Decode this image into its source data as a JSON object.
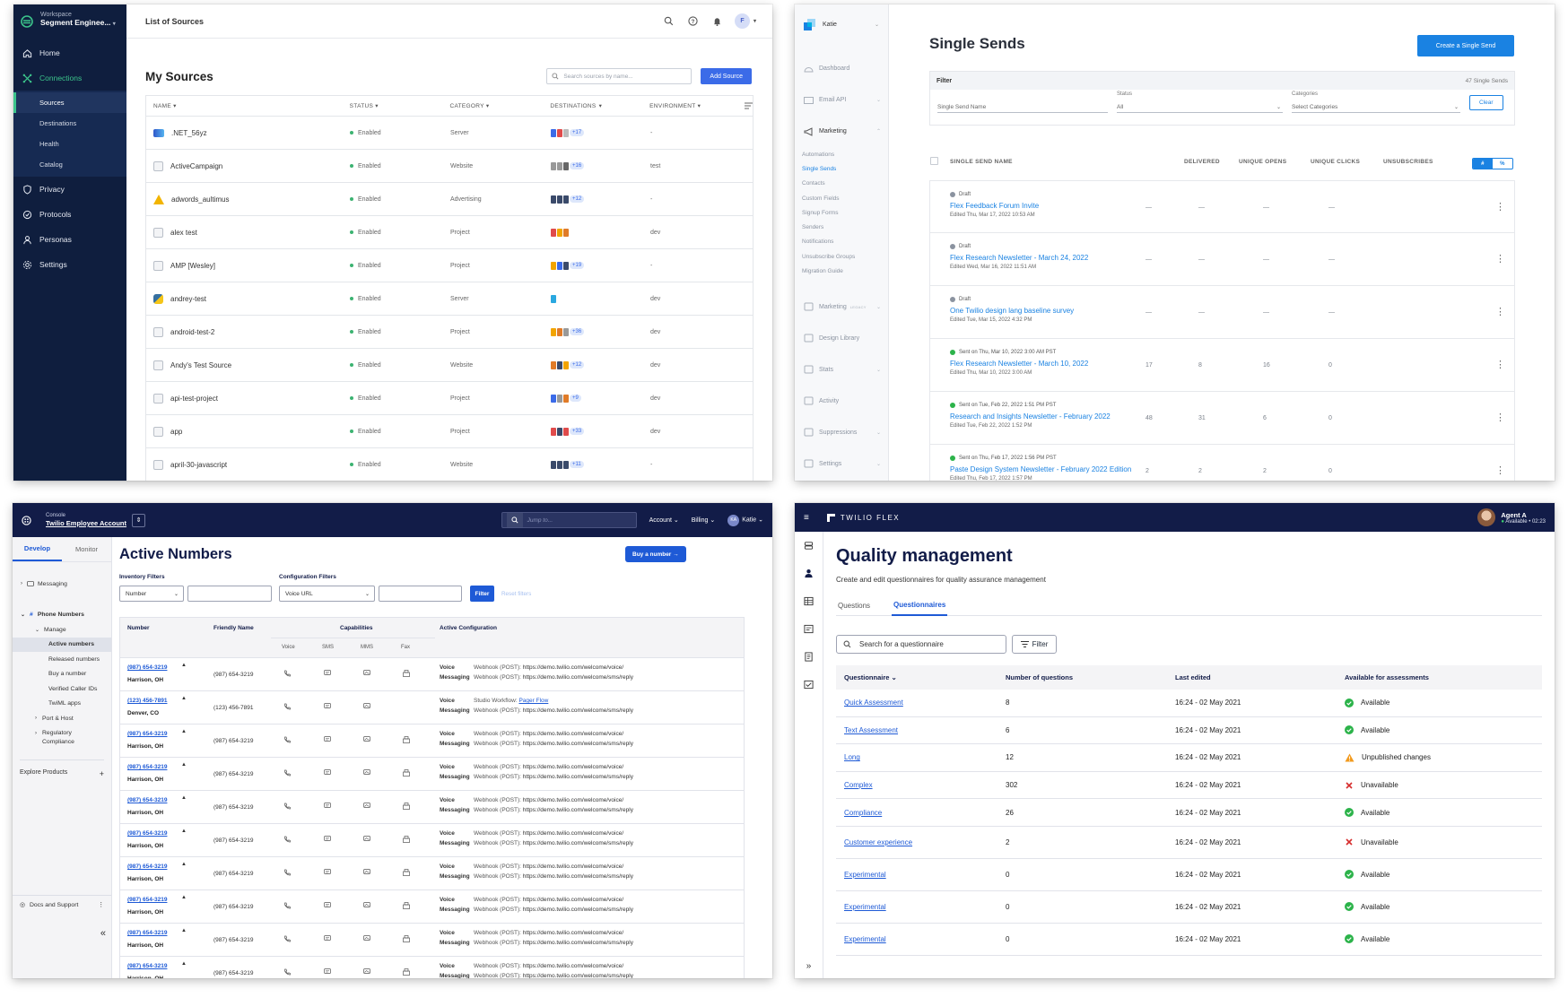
{
  "segment": {
    "workspace_label": "Workspace",
    "workspace_name": "Segment Enginee...",
    "nav": [
      {
        "label": "Home",
        "icon": "home-icon"
      },
      {
        "label": "Connections",
        "icon": "connections-icon"
      }
    ],
    "sub_nav": [
      "Sources",
      "Destinations",
      "Health",
      "Catalog"
    ],
    "nav_bottom": [
      {
        "label": "Privacy",
        "icon": "shield-icon"
      },
      {
        "label": "Protocols",
        "icon": "protocols-icon"
      },
      {
        "label": "Personas",
        "icon": "person-icon"
      },
      {
        "label": "Settings",
        "icon": "gear-icon"
      }
    ],
    "page_title": "List of Sources",
    "avatar_initial": "F",
    "heading": "My Sources",
    "search_placeholder": "Search sources by name...",
    "add_button": "Add Source",
    "columns": [
      "NAME",
      "STATUS",
      "CATEGORY",
      "DESTINATIONS",
      "ENVIRONMENT"
    ],
    "rows": [
      {
        "name": ".NET_56yz",
        "status": "Enabled",
        "category": "Server",
        "count": "+17",
        "env": "-",
        "colors": [
          "#3b6be8",
          "#e04b4b",
          "#bbb"
        ]
      },
      {
        "name": "ActiveCampaign",
        "status": "Enabled",
        "category": "Website",
        "count": "+16",
        "env": "test",
        "colors": [
          "#999",
          "#999",
          "#666"
        ]
      },
      {
        "name": "adwords_aultimus",
        "status": "Enabled",
        "category": "Advertising",
        "count": "+12",
        "env": "-",
        "colors": [
          "#3a4a6a",
          "#3a4a6a",
          "#3a4a6a"
        ]
      },
      {
        "name": "alex test",
        "status": "Enabled",
        "category": "Project",
        "count": "",
        "env": "dev",
        "colors": [
          "#e04b4b",
          "#f2a400",
          "#e07b28"
        ]
      },
      {
        "name": "AMP [Wesley]",
        "status": "Enabled",
        "category": "Project",
        "count": "+19",
        "env": "-",
        "colors": [
          "#f2a400",
          "#3b6be8",
          "#3a4a6a"
        ]
      },
      {
        "name": "andrey-test",
        "status": "Enabled",
        "category": "Server",
        "count": "",
        "env": "dev",
        "colors": [
          "#2aa8e0"
        ]
      },
      {
        "name": "android-test-2",
        "status": "Enabled",
        "category": "Project",
        "count": "+36",
        "env": "dev",
        "colors": [
          "#f2a400",
          "#e07b28",
          "#999"
        ]
      },
      {
        "name": "Andy's Test Source",
        "status": "Enabled",
        "category": "Website",
        "count": "+12",
        "env": "dev",
        "colors": [
          "#e07b28",
          "#3a4a6a",
          "#f2a400"
        ]
      },
      {
        "name": "api-test-project",
        "status": "Enabled",
        "category": "Project",
        "count": "+9",
        "env": "dev",
        "colors": [
          "#3b6be8",
          "#999",
          "#e07b28"
        ]
      },
      {
        "name": "app",
        "status": "Enabled",
        "category": "Project",
        "count": "+33",
        "env": "dev",
        "colors": [
          "#e04b4b",
          "#3a4a6a",
          "#e04b4b"
        ]
      },
      {
        "name": "april-30-javascript",
        "status": "Enabled",
        "category": "Website",
        "count": "+11",
        "env": "-",
        "colors": [
          "#3a4a6a",
          "#3a4a6a",
          "#3a4a6a"
        ]
      }
    ]
  },
  "sendgrid": {
    "user": "Katie",
    "nav": [
      {
        "label": "Dashboard",
        "icon": "dashboard-icon"
      },
      {
        "label": "Email API",
        "icon": "email-icon"
      },
      {
        "label": "Marketing",
        "icon": "megaphone-icon"
      }
    ],
    "marketing_items": [
      "Automations",
      "Single Sends",
      "Contacts",
      "Custom Fields",
      "Signup Forms",
      "Senders",
      "Notifications",
      "Unsubscribe Groups",
      "Migration Guide"
    ],
    "nav_bottom": [
      {
        "label": "Marketing",
        "icon": "megaphone-icon",
        "badge": "LEGACY"
      },
      {
        "label": "Design Library",
        "icon": "design-icon",
        "badge": ""
      },
      {
        "label": "Stats",
        "icon": "stats-icon",
        "badge": ""
      },
      {
        "label": "Activity",
        "icon": "activity-icon",
        "badge": ""
      },
      {
        "label": "Suppressions",
        "icon": "suppressions-icon",
        "badge": ""
      },
      {
        "label": "Settings",
        "icon": "settings-icon",
        "badge": ""
      }
    ],
    "heading": "Single Sends",
    "create_button": "Create a Single Send",
    "filter_label": "Filter",
    "count": "47 Single Sends",
    "name_placeholder": "Single Send Name",
    "status_label": "Status",
    "status_value": "All",
    "categories_label": "Categories",
    "categories_placeholder": "Select Categories",
    "clear_button": "Clear",
    "columns": [
      "SINGLE SEND NAME",
      "DELIVERED",
      "UNIQUE OPENS",
      "UNIQUE CLICKS",
      "UNSUBSCRIBES"
    ],
    "toggle": [
      "#",
      "%"
    ],
    "rows": [
      {
        "status": "Draft",
        "dot": "#8b93a0",
        "name": "Flex Feedback Forum Invite",
        "edited": "Edited Thu, Mar 17, 2022 10:53 AM",
        "delivered": "—",
        "opens": "—",
        "clicks": "—",
        "unsubs": "—"
      },
      {
        "status": "Draft",
        "dot": "#8b93a0",
        "name": "Flex Research Newsletter - March 24, 2022",
        "edited": "Edited Wed, Mar 16, 2022 11:51 AM",
        "delivered": "—",
        "opens": "—",
        "clicks": "—",
        "unsubs": "—"
      },
      {
        "status": "Draft",
        "dot": "#8b93a0",
        "name": "One Twilio design lang baseline survey",
        "edited": "Edited Tue, Mar 15, 2022 4:32 PM",
        "delivered": "—",
        "opens": "—",
        "clicks": "—",
        "unsubs": "—"
      },
      {
        "status": "Sent on Thu, Mar 10, 2022 3:00 AM PST",
        "dot": "#2cb34a",
        "name": "Flex Research Newsletter - March 10, 2022",
        "edited": "Edited Thu, Mar 10, 2022 3:00 AM",
        "delivered": "17",
        "opens": "8",
        "clicks": "16",
        "unsubs": "0"
      },
      {
        "status": "Sent on Tue, Feb 22, 2022 1:51 PM PST",
        "dot": "#2cb34a",
        "name": "Research and Insights Newsletter - February 2022",
        "edited": "Edited Tue, Feb 22, 2022 1:52 PM",
        "delivered": "48",
        "opens": "31",
        "clicks": "6",
        "unsubs": "0"
      },
      {
        "status": "Sent on Thu, Feb 17, 2022 1:56 PM PST",
        "dot": "#2cb34a",
        "name": "Paste Design System Newsletter - February 2022 Edition",
        "edited": "Edited Thu, Feb 17, 2022 1:57 PM",
        "delivered": "2",
        "opens": "2",
        "clicks": "2",
        "unsubs": "0"
      }
    ]
  },
  "console": {
    "console_label": "Console",
    "account": "Twilio Employee Account",
    "search_placeholder": "Jump to...",
    "menus": [
      "Account",
      "Billing",
      "Katie"
    ],
    "avatar": "KA",
    "tabs": [
      "Develop",
      "Monitor"
    ],
    "sidebar": [
      "Messaging",
      "Phone Numbers",
      "Manage",
      "Active numbers",
      "Released numbers",
      "Buy a number",
      "Verified Caller IDs",
      "TwiML apps",
      "Port & Host",
      "Regulatory",
      "Compliance"
    ],
    "explore": "Explore Products",
    "docs": "Docs and Support",
    "heading": "Active Numbers",
    "buy_button": "Buy a number →",
    "inventory_label": "Inventory Filters",
    "inventory_select": "Number",
    "config_label": "Configuration Filters",
    "config_select": "Voice URL",
    "filter_button": "Filter",
    "reset": "Reset filters",
    "columns": {
      "number": "Number",
      "friendly": "Friendly Name",
      "capabilities": "Capabilities",
      "active": "Active Configuration"
    },
    "cap_columns": [
      "Voice",
      "SMS",
      "MMS",
      "Fax"
    ],
    "config_labels": [
      "Voice",
      "Messaging"
    ],
    "webhook_prefix": "Webhook (POST): ",
    "studio_prefix": "Studio Workflow: ",
    "rows": [
      {
        "number": "(987) 654-3219",
        "loc": "Harrison, OH",
        "friendly": "(987) 654-3219",
        "voice": "https://demo.twilio.com/welcome/voice/",
        "sms": "https://demo.twilio.com/welcome/sms/reply",
        "fax": true,
        "studio": ""
      },
      {
        "number": "(123) 456-7891",
        "loc": "Denver, CO",
        "friendly": "(123) 456-7891",
        "voice": "",
        "sms": "https://demo.twilio.com/welcome/sms/reply",
        "fax": false,
        "studio": "Pager Flow"
      },
      {
        "number": "(987) 654-3219",
        "loc": "Harrison, OH",
        "friendly": "(987) 654-3219",
        "voice": "https://demo.twilio.com/welcome/voice/",
        "sms": "https://demo.twilio.com/welcome/sms/reply",
        "fax": true,
        "studio": ""
      },
      {
        "number": "(987) 654-3219",
        "loc": "Harrison, OH",
        "friendly": "(987) 654-3219",
        "voice": "https://demo.twilio.com/welcome/voice/",
        "sms": "https://demo.twilio.com/welcome/sms/reply",
        "fax": true,
        "studio": ""
      },
      {
        "number": "(987) 654-3219",
        "loc": "Harrison, OH",
        "friendly": "(987) 654-3219",
        "voice": "https://demo.twilio.com/welcome/voice/",
        "sms": "https://demo.twilio.com/welcome/sms/reply",
        "fax": true,
        "studio": ""
      },
      {
        "number": "(987) 654-3219",
        "loc": "Harrison, OH",
        "friendly": "(987) 654-3219",
        "voice": "https://demo.twilio.com/welcome/voice/",
        "sms": "https://demo.twilio.com/welcome/sms/reply",
        "fax": true,
        "studio": ""
      },
      {
        "number": "(987) 654-3219",
        "loc": "Harrison, OH",
        "friendly": "(987) 654-3219",
        "voice": "https://demo.twilio.com/welcome/voice/",
        "sms": "https://demo.twilio.com/welcome/sms/reply",
        "fax": true,
        "studio": ""
      },
      {
        "number": "(987) 654-3219",
        "loc": "Harrison, OH",
        "friendly": "(987) 654-3219",
        "voice": "https://demo.twilio.com/welcome/voice/",
        "sms": "https://demo.twilio.com/welcome/sms/reply",
        "fax": true,
        "studio": ""
      },
      {
        "number": "(987) 654-3219",
        "loc": "Harrison, OH",
        "friendly": "(987) 654-3219",
        "voice": "https://demo.twilio.com/welcome/voice/",
        "sms": "https://demo.twilio.com/welcome/sms/reply",
        "fax": true,
        "studio": ""
      },
      {
        "number": "(987) 654-3219",
        "loc": "Harrison, OH",
        "friendly": "(987) 654-3219",
        "voice": "https://demo.twilio.com/welcome/voice/",
        "sms": "https://demo.twilio.com/welcome/sms/reply",
        "fax": true,
        "studio": ""
      }
    ]
  },
  "flex": {
    "brand": "TWILIO FLEX",
    "agent_name": "Agent A",
    "agent_status": "Available • 02:23",
    "heading": "Quality management",
    "description": "Create and edit questionnaires for quality assurance management",
    "tabs": [
      "Questions",
      "Questionnaires"
    ],
    "search_placeholder": "Search for a questionnaire",
    "filter_button": "Filter",
    "columns": [
      "Questionnaire",
      "Number of questions",
      "Last edited",
      "Available for assessments"
    ],
    "rows": [
      {
        "name": "Quick Assessment",
        "count": "8",
        "edited": "16:24 - 02 May 2021",
        "status": "Available",
        "kind": "ok"
      },
      {
        "name": "Text Assessment",
        "count": "6",
        "edited": "16:24 - 02 May 2021",
        "status": "Available",
        "kind": "ok"
      },
      {
        "name": "Long",
        "count": "12",
        "edited": "16:24 - 02 May 2021",
        "status": "Unpublished changes",
        "kind": "warn"
      },
      {
        "name": "Complex",
        "count": "302",
        "edited": "16:24 - 02 May 2021",
        "status": "Unavailable",
        "kind": "no"
      },
      {
        "name": "Compliance",
        "count": "26",
        "edited": "16:24 - 02 May 2021",
        "status": "Available",
        "kind": "ok"
      },
      {
        "name": "Customer experience",
        "count": "2",
        "edited": "16:24 - 02 May 2021",
        "status": "Unavailable",
        "kind": "no"
      },
      {
        "name": "Experimental",
        "count": "0",
        "edited": "16:24 - 02 May 2021",
        "status": "Available",
        "kind": "ok"
      },
      {
        "name": "Experimental",
        "count": "0",
        "edited": "16:24 - 02 May 2021",
        "status": "Available",
        "kind": "ok"
      },
      {
        "name": "Experimental",
        "count": "0",
        "edited": "16:24 - 02 May 2021",
        "status": "Available",
        "kind": "ok"
      }
    ]
  },
  "colors": {
    "segment_nav": "#0f1e3e",
    "segment_accent": "#3cc48b",
    "sendgrid_blue": "#1a82e2",
    "twilio_navy": "#121c48",
    "twilio_blue": "#1e5ad6",
    "ok": "#2cb34a",
    "warn": "#f29a1d",
    "no": "#d62c2c"
  }
}
